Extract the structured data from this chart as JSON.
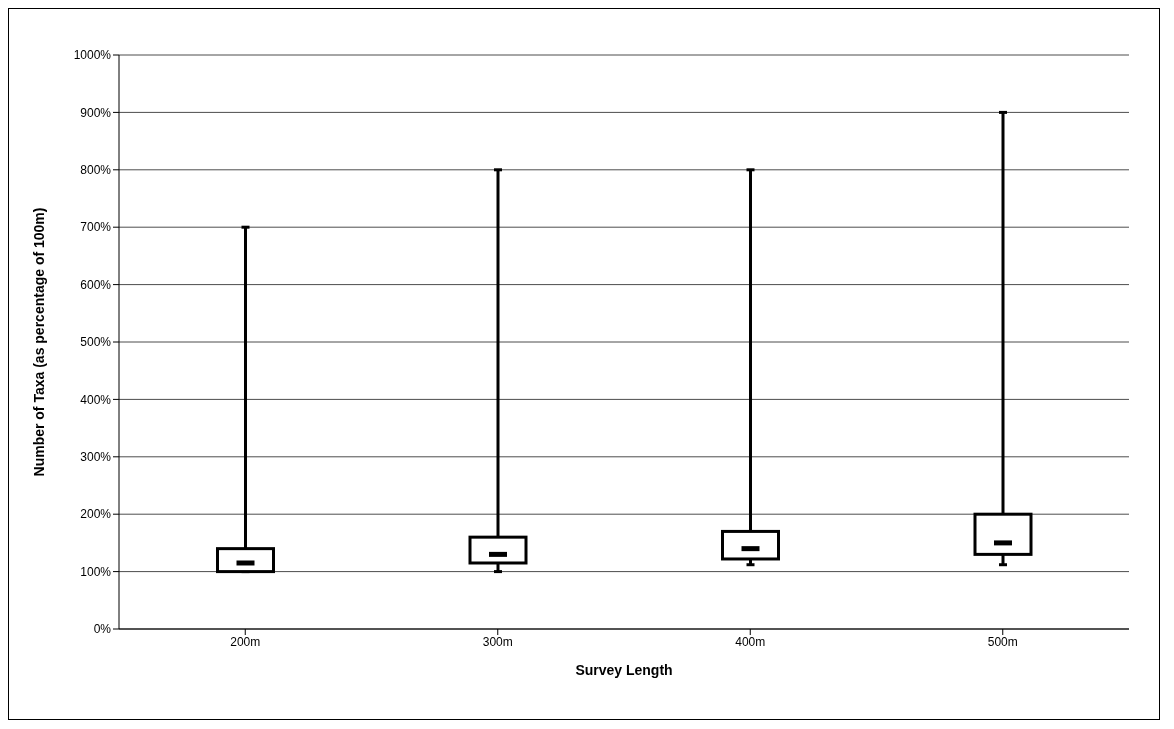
{
  "chart_data": {
    "type": "box",
    "xlabel": "Survey Length",
    "ylabel": "Number of Taxa (as percentage of 100m)",
    "categories": [
      "200m",
      "300m",
      "400m",
      "500m"
    ],
    "color": "#000000",
    "boxes": [
      {
        "low": 100,
        "q1": 100,
        "median": 115,
        "q3": 140,
        "high": 700
      },
      {
        "low": 100,
        "q1": 115,
        "median": 130,
        "q3": 160,
        "high": 800
      },
      {
        "low": 112,
        "q1": 122,
        "median": 140,
        "q3": 170,
        "high": 800
      },
      {
        "low": 112,
        "q1": 130,
        "median": 150,
        "q3": 200,
        "high": 900
      }
    ],
    "ylim": [
      0,
      1000
    ],
    "yticks": [
      {
        "value": 0,
        "label": "0%"
      },
      {
        "value": 100,
        "label": "100%"
      },
      {
        "value": 200,
        "label": "200%"
      },
      {
        "value": 300,
        "label": "300%"
      },
      {
        "value": 400,
        "label": "400%"
      },
      {
        "value": 500,
        "label": "500%"
      },
      {
        "value": 600,
        "label": "600%"
      },
      {
        "value": 700,
        "label": "700%"
      },
      {
        "value": 800,
        "label": "800%"
      },
      {
        "value": 900,
        "label": "900%"
      },
      {
        "value": 1000,
        "label": "1000%"
      }
    ],
    "grid": "y",
    "legend": false
  }
}
